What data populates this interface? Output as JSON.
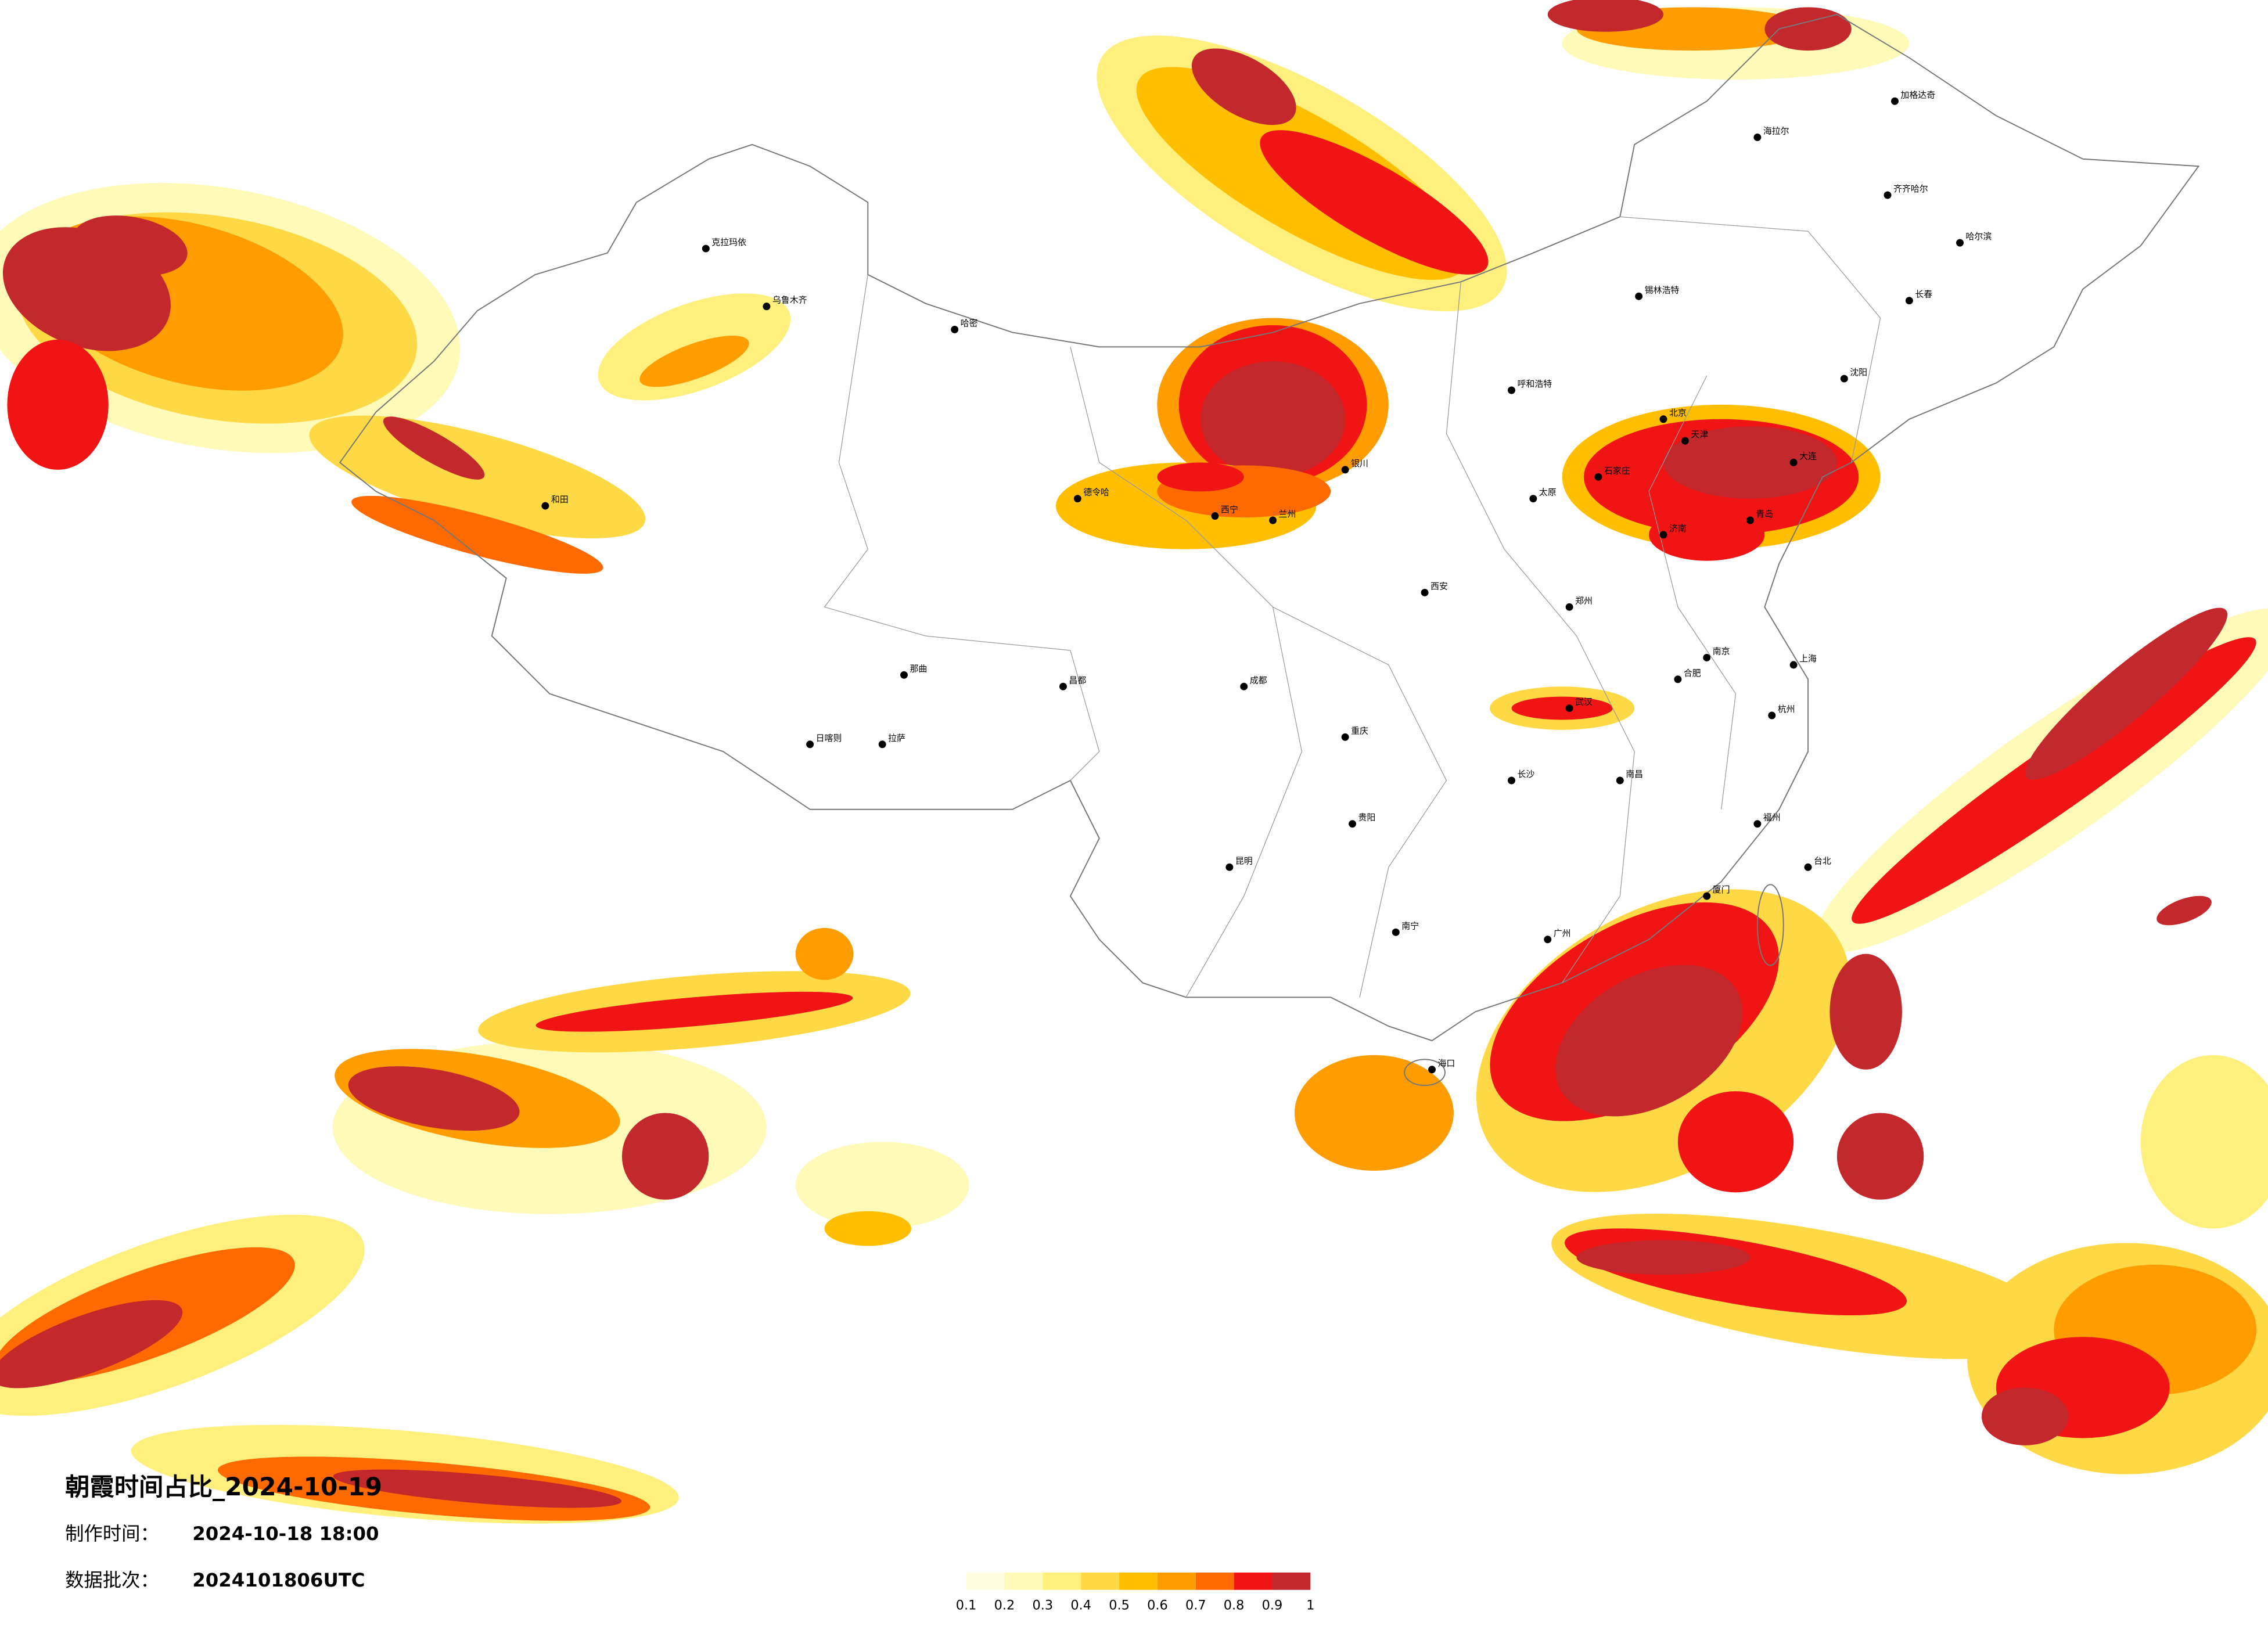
{
  "header": {
    "title": "朝霞时间占比_2024-10-19"
  },
  "info": [
    {
      "label": "制作时间：",
      "value": "2024-10-18 18:00"
    },
    {
      "label": "数据批次：",
      "value": "2024101806UTC"
    }
  ],
  "legend": {
    "ticks": [
      0.1,
      0.2,
      0.3,
      0.4,
      0.5,
      0.6,
      0.7,
      0.8,
      0.9,
      1
    ],
    "colors": [
      "#fffde2",
      "#fffab8",
      "#fff07e",
      "#ffd945",
      "#ffbf00",
      "#ff9c00",
      "#ff6a00",
      "#f01414",
      "#c3282c"
    ]
  },
  "cities": [
    "北京",
    "天津",
    "石家庄",
    "太原",
    "呼和浩特",
    "哈尔滨",
    "长春",
    "沈阳",
    "济南",
    "郑州",
    "西安",
    "兰州",
    "西宁",
    "银川",
    "乌鲁木齐",
    "拉萨",
    "成都",
    "重庆",
    "贵阳",
    "昆明",
    "南宁",
    "广州",
    "长沙",
    "武汉",
    "南昌",
    "合肥",
    "南京",
    "上海",
    "杭州",
    "福州",
    "台北",
    "海口",
    "和田",
    "克拉玛依",
    "哈密",
    "那曲",
    "日喀则",
    "德令哈",
    "海拉尔",
    "加格达奇",
    "齐齐哈尔",
    "昌都",
    "锡林浩特",
    "大连",
    "青岛",
    "厦门"
  ]
}
